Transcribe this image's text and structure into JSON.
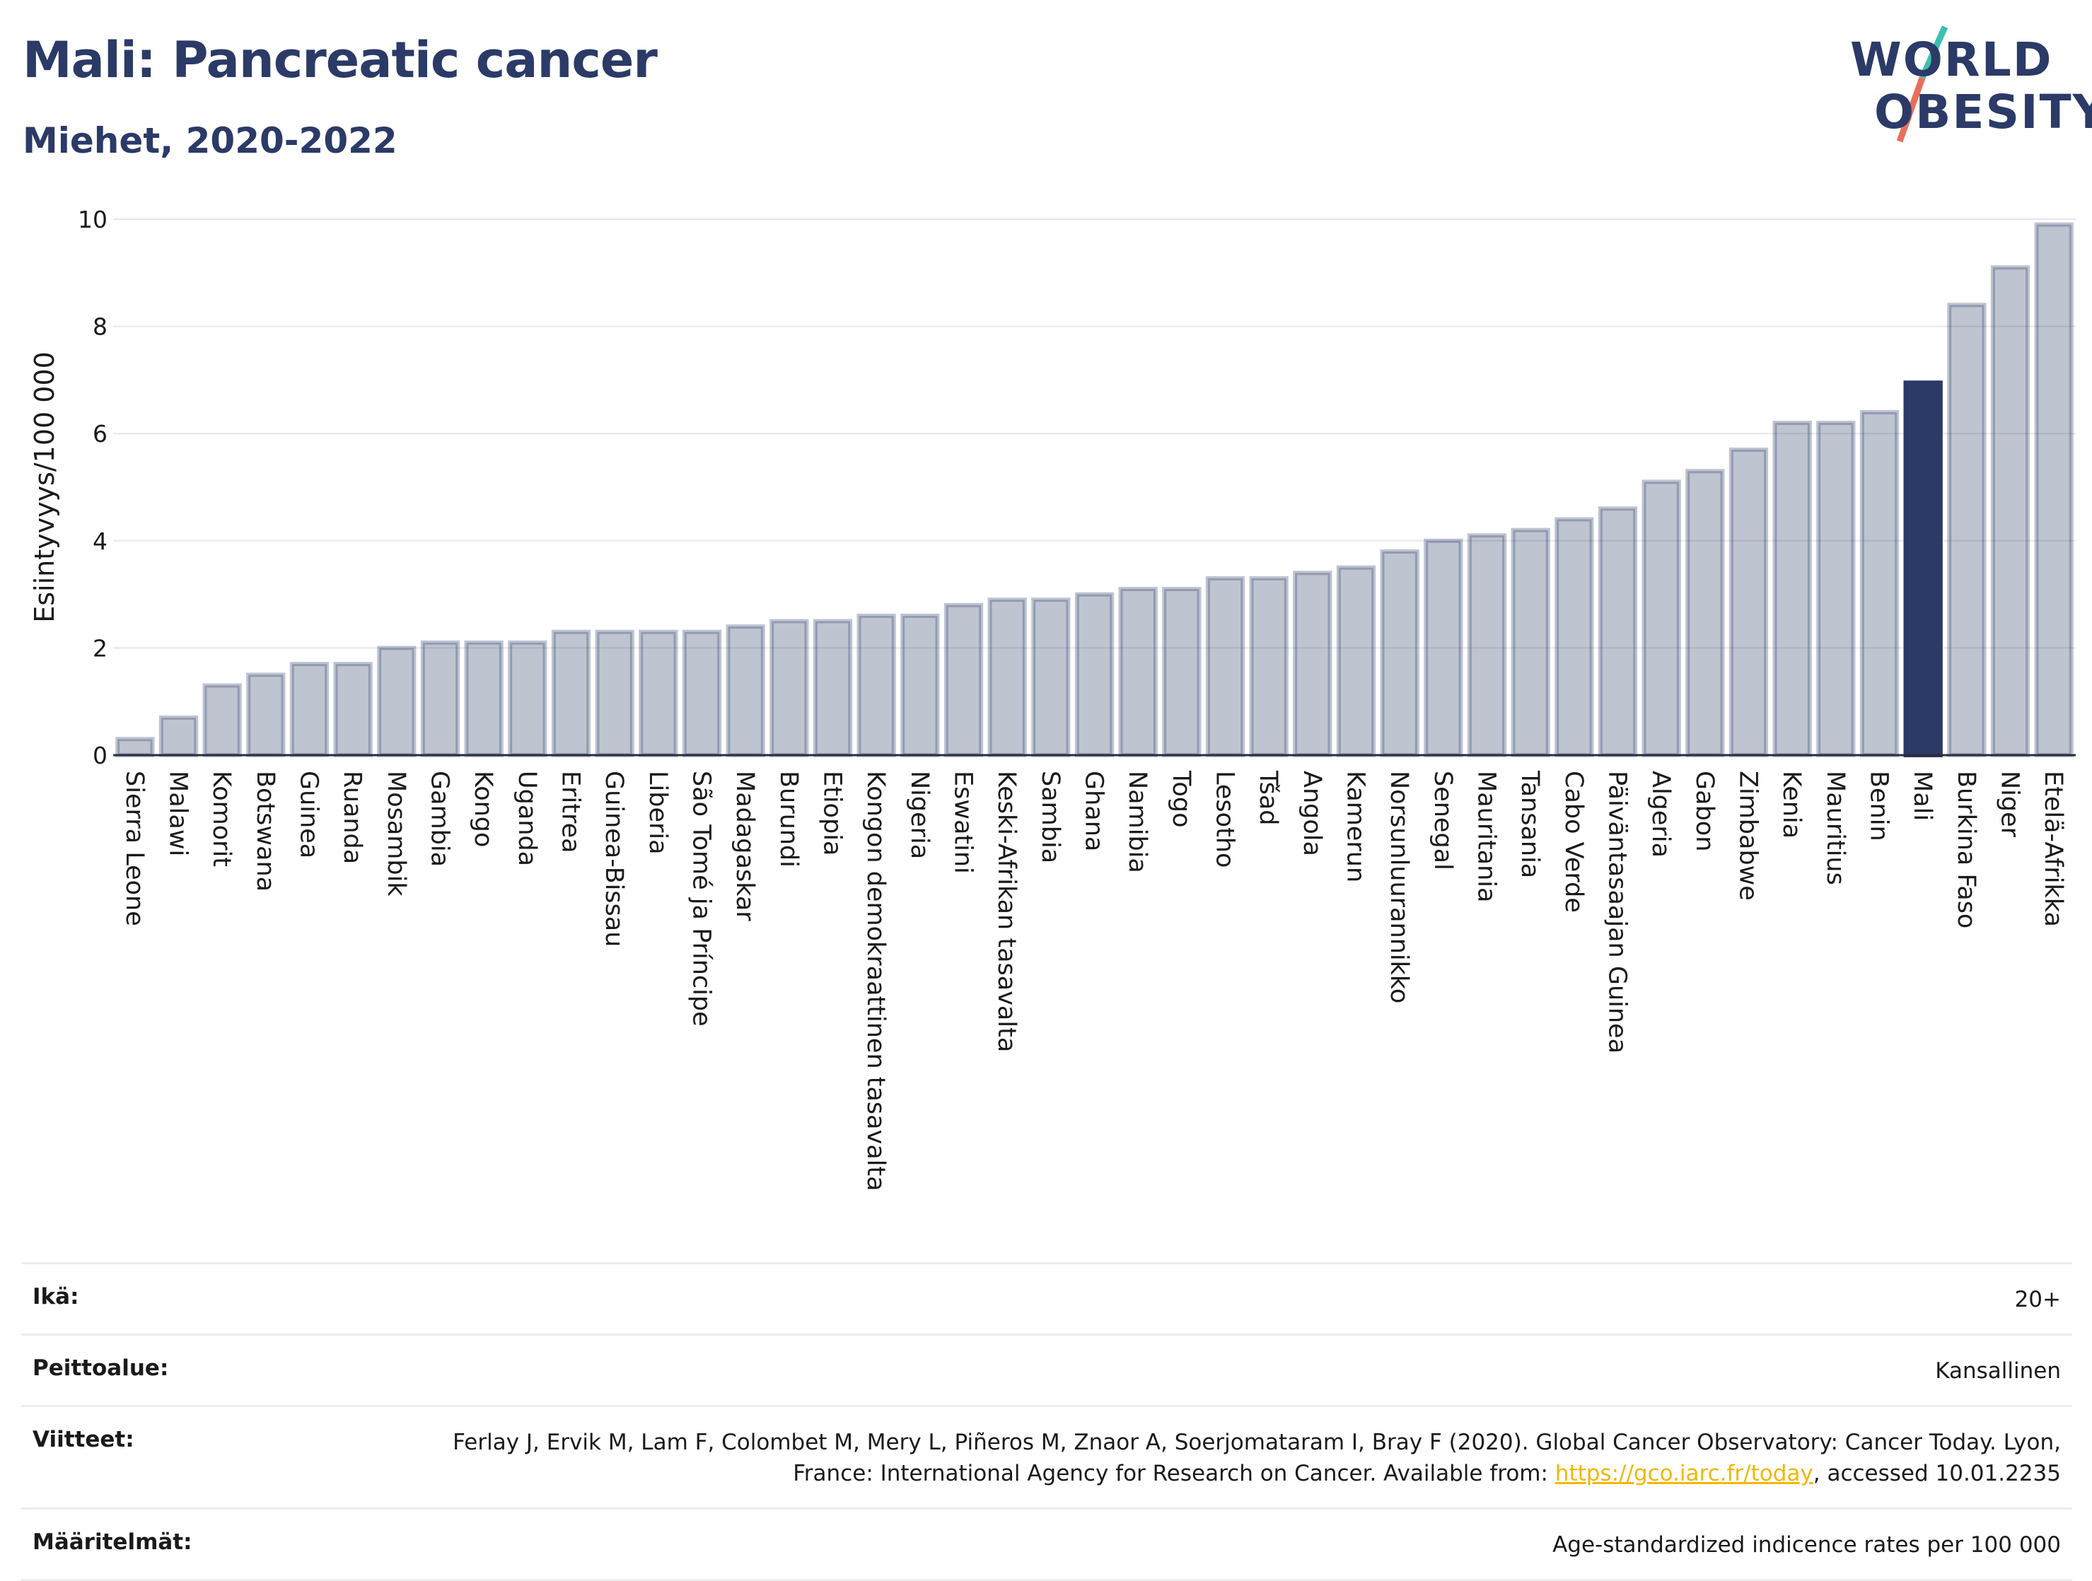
{
  "header": {
    "title": "Mali: Pancreatic cancer",
    "subtitle": "Miehet, 2020-2022"
  },
  "logo": {
    "line1": "WORLD",
    "line2": "OBESITY"
  },
  "chart_data": {
    "type": "bar",
    "title": "Mali: Pancreatic cancer",
    "subtitle": "Miehet, 2020-2022",
    "ylabel": "Esiintyvyys/100 000",
    "xlabel": "",
    "ylim": [
      0,
      10
    ],
    "yticks": [
      0,
      2,
      4,
      6,
      8,
      10
    ],
    "grid": true,
    "highlight": "Mali",
    "colors": {
      "bar": "#2b3a67",
      "bar_fill_opacity": 0.3,
      "highlight": "#2b3a67"
    },
    "categories": [
      "Sierra Leone",
      "Malawi",
      "Komorit",
      "Botswana",
      "Guinea",
      "Ruanda",
      "Mosambik",
      "Gambia",
      "Kongo",
      "Uganda",
      "Eritrea",
      "Guinea-Bissau",
      "Liberia",
      "São Tomé ja Príncipe",
      "Madagaskar",
      "Burundi",
      "Etiopia",
      "Kongon demokraattinen tasavalta",
      "Nigeria",
      "Eswatini",
      "Keski-Afrikan tasavalta",
      "Sambia",
      "Ghana",
      "Namibia",
      "Togo",
      "Lesotho",
      "Tšad",
      "Angola",
      "Kamerun",
      "Norsunluurannikko",
      "Senegal",
      "Mauritania",
      "Tansania",
      "Cabo Verde",
      "Päiväntasaajan Guinea",
      "Algeria",
      "Gabon",
      "Zimbabwe",
      "Kenia",
      "Mauritius",
      "Benin",
      "Mali",
      "Burkina Faso",
      "Niger",
      "Etelä-Afrikka"
    ],
    "values": [
      0.3,
      0.7,
      1.3,
      1.5,
      1.7,
      1.7,
      2.0,
      2.1,
      2.1,
      2.1,
      2.3,
      2.3,
      2.3,
      2.3,
      2.4,
      2.5,
      2.5,
      2.6,
      2.6,
      2.8,
      2.9,
      2.9,
      3.0,
      3.1,
      3.1,
      3.3,
      3.3,
      3.4,
      3.5,
      3.8,
      4.0,
      4.1,
      4.2,
      4.4,
      4.6,
      5.1,
      5.3,
      5.7,
      6.2,
      6.2,
      6.4,
      6.95,
      8.4,
      9.1,
      9.9
    ]
  },
  "info": {
    "age_label": "Ikä:",
    "age_value": "20+",
    "coverage_label": "Peittoalue:",
    "coverage_value": "Kansallinen",
    "refs_label": "Viitteet:",
    "refs_text": "Ferlay J, Ervik M, Lam F, Colombet M, Mery L, Piñeros M, Znaor A, Soerjomataram I, Bray F (2020). Global Cancer Observatory: Cancer Today. Lyon, France: International Agency for Research on Cancer. Available from: ",
    "refs_link": "https://gco.iarc.fr/today",
    "refs_tail": ", accessed 10.01.2235",
    "defs_label": "Määritelmät:",
    "defs_value": "Age-standardized indicence rates per 100 000"
  }
}
